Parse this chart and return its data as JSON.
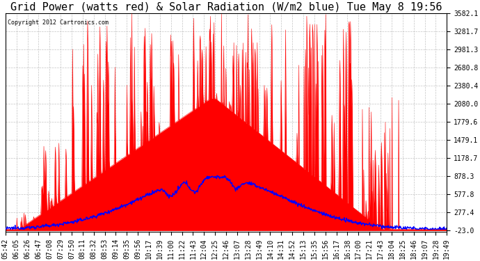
{
  "title": "Grid Power (watts red) & Solar Radiation (W/m2 blue) Tue May 8 19:56",
  "copyright": "Copyright 2012 Cartronics.com",
  "y_min": -23.0,
  "y_max": 3582.1,
  "y_ticks": [
    3582.1,
    3281.7,
    2981.3,
    2680.8,
    2380.4,
    2080.0,
    1779.6,
    1479.1,
    1178.7,
    878.3,
    577.8,
    277.4,
    -23.0
  ],
  "x_labels": [
    "05:42",
    "06:05",
    "06:26",
    "06:47",
    "07:08",
    "07:29",
    "07:50",
    "08:11",
    "08:32",
    "08:53",
    "09:14",
    "09:35",
    "09:56",
    "10:17",
    "10:39",
    "11:00",
    "11:22",
    "11:43",
    "12:04",
    "12:25",
    "12:46",
    "13:07",
    "13:28",
    "13:49",
    "14:10",
    "14:31",
    "14:52",
    "15:13",
    "15:35",
    "15:56",
    "16:17",
    "16:38",
    "17:00",
    "17:21",
    "17:43",
    "18:04",
    "18:25",
    "18:46",
    "19:07",
    "19:28",
    "19:49"
  ],
  "bg_color": "#ffffff",
  "plot_bg_color": "#ffffff",
  "grid_color": "#aaaaaa",
  "red_color": "#ff0000",
  "blue_color": "#0000ff",
  "title_fontsize": 11,
  "tick_fontsize": 7,
  "n_points": 1000
}
